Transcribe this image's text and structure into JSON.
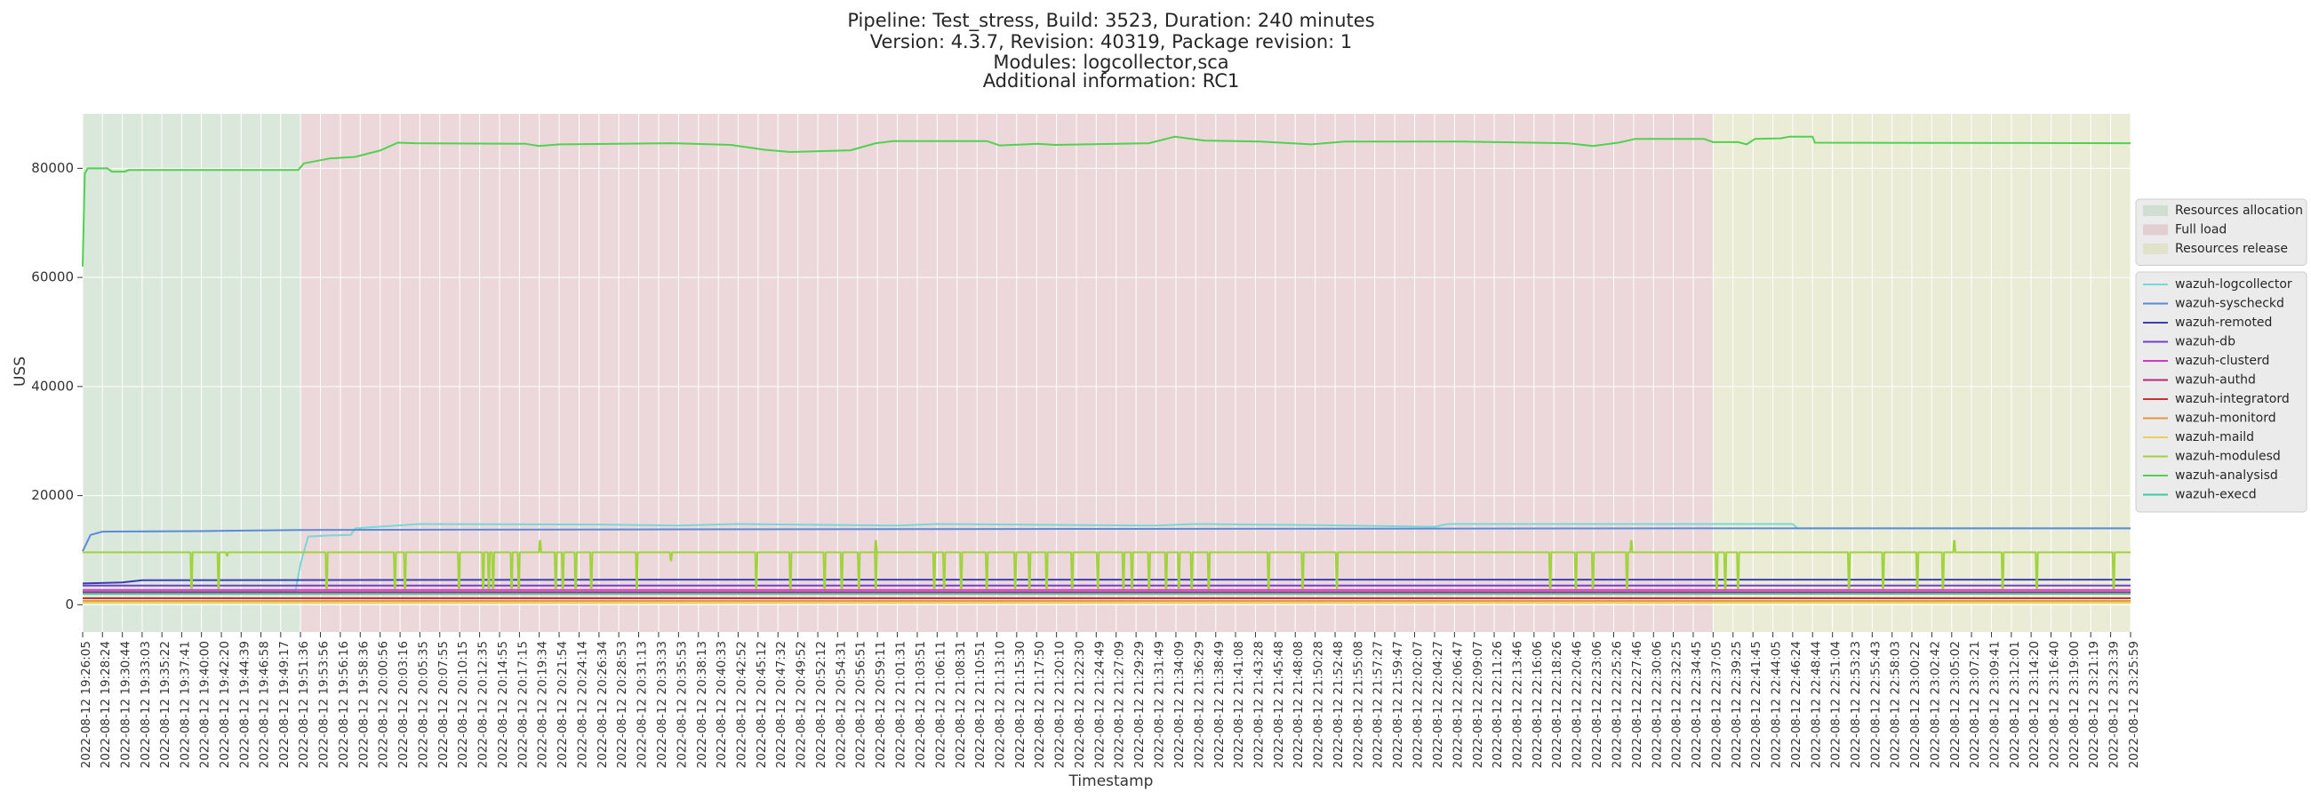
{
  "chart_data": {
    "type": "line",
    "title_lines": [
      "Pipeline: Test_stress, Build: 3523, Duration: 240 minutes",
      "Version: 4.3.7, Revision: 40319, Package revision: 1",
      "Modules: logcollector,sca",
      "Additional information: RC1"
    ],
    "xlabel": "Timestamp",
    "ylabel": "USS",
    "ylim": [
      -5000,
      90000
    ],
    "yticks": [
      0,
      20000,
      40000,
      60000,
      80000
    ],
    "grid": true,
    "legend_placement": "right",
    "x_range": [
      "2022-08-12 19:26:05",
      "2022-08-12 23:25:59"
    ],
    "x_tick_labels": [
      "2022-08-12 19:26:05",
      "2022-08-12 19:28:24",
      "2022-08-12 19:30:44",
      "2022-08-12 19:33:03",
      "2022-08-12 19:35:22",
      "2022-08-12 19:37:41",
      "2022-08-12 19:40:00",
      "2022-08-12 19:42:20",
      "2022-08-12 19:44:39",
      "2022-08-12 19:46:58",
      "2022-08-12 19:49:17",
      "2022-08-12 19:51:36",
      "2022-08-12 19:53:56",
      "2022-08-12 19:56:16",
      "2022-08-12 19:58:36",
      "2022-08-12 20:00:56",
      "2022-08-12 20:03:16",
      "2022-08-12 20:05:35",
      "2022-08-12 20:07:55",
      "2022-08-12 20:10:15",
      "2022-08-12 20:12:35",
      "2022-08-12 20:14:55",
      "2022-08-12 20:17:15",
      "2022-08-12 20:19:34",
      "2022-08-12 20:21:54",
      "2022-08-12 20:24:14",
      "2022-08-12 20:26:34",
      "2022-08-12 20:28:53",
      "2022-08-12 20:31:13",
      "2022-08-12 20:33:33",
      "2022-08-12 20:35:53",
      "2022-08-12 20:38:13",
      "2022-08-12 20:40:33",
      "2022-08-12 20:42:52",
      "2022-08-12 20:45:12",
      "2022-08-12 20:47:32",
      "2022-08-12 20:49:52",
      "2022-08-12 20:52:12",
      "2022-08-12 20:54:31",
      "2022-08-12 20:56:51",
      "2022-08-12 20:59:11",
      "2022-08-12 21:01:31",
      "2022-08-12 21:03:51",
      "2022-08-12 21:06:11",
      "2022-08-12 21:08:31",
      "2022-08-12 21:10:51",
      "2022-08-12 21:13:10",
      "2022-08-12 21:15:30",
      "2022-08-12 21:17:50",
      "2022-08-12 21:20:10",
      "2022-08-12 21:22:30",
      "2022-08-12 21:24:49",
      "2022-08-12 21:27:09",
      "2022-08-12 21:29:29",
      "2022-08-12 21:31:49",
      "2022-08-12 21:34:09",
      "2022-08-12 21:36:29",
      "2022-08-12 21:38:49",
      "2022-08-12 21:41:08",
      "2022-08-12 21:43:28",
      "2022-08-12 21:45:48",
      "2022-08-12 21:48:08",
      "2022-08-12 21:50:28",
      "2022-08-12 21:52:48",
      "2022-08-12 21:55:08",
      "2022-08-12 21:57:27",
      "2022-08-12 21:59:47",
      "2022-08-12 22:02:07",
      "2022-08-12 22:04:27",
      "2022-08-12 22:06:47",
      "2022-08-12 22:09:07",
      "2022-08-12 22:11:26",
      "2022-08-12 22:13:46",
      "2022-08-12 22:16:06",
      "2022-08-12 22:18:26",
      "2022-08-12 22:20:46",
      "2022-08-12 22:23:06",
      "2022-08-12 22:25:26",
      "2022-08-12 22:27:46",
      "2022-08-12 22:30:06",
      "2022-08-12 22:32:25",
      "2022-08-12 22:34:45",
      "2022-08-12 22:37:05",
      "2022-08-12 22:39:25",
      "2022-08-12 22:41:45",
      "2022-08-12 22:44:05",
      "2022-08-12 22:46:24",
      "2022-08-12 22:48:44",
      "2022-08-12 22:51:04",
      "2022-08-12 22:53:23",
      "2022-08-12 22:55:43",
      "2022-08-12 22:58:03",
      "2022-08-12 23:00:22",
      "2022-08-12 23:02:42",
      "2022-08-12 23:05:02",
      "2022-08-12 23:07:21",
      "2022-08-12 23:09:41",
      "2022-08-12 23:12:01",
      "2022-08-12 23:14:20",
      "2022-08-12 23:16:40",
      "2022-08-12 23:19:00",
      "2022-08-12 23:21:19",
      "2022-08-12 23:23:39",
      "2022-08-12 23:25:59"
    ],
    "phases": [
      {
        "name": "Resources allocation",
        "start": "2022-08-12 19:26:05",
        "end": "2022-08-12 19:51:36",
        "color": "#b6cfb8"
      },
      {
        "name": "Full load",
        "start": "2022-08-12 19:51:36",
        "end": "2022-08-12 22:37:05",
        "color": "#d9b1b6"
      },
      {
        "name": "Resources release",
        "start": "2022-08-12 22:37:05",
        "end": "2022-08-12 23:25:59",
        "color": "#d6d9ad"
      }
    ],
    "series": [
      {
        "name": "wazuh-logcollector",
        "color": "#78d7d7",
        "points": [
          [
            "2022-08-12 19:26:05",
            2400
          ],
          [
            "2022-08-12 19:51:00",
            2400
          ],
          [
            "2022-08-12 19:51:36",
            7500
          ],
          [
            "2022-08-12 19:52:30",
            12500
          ],
          [
            "2022-08-12 19:55:00",
            12700
          ],
          [
            "2022-08-12 19:57:30",
            12800
          ],
          [
            "2022-08-12 19:58:00",
            14000
          ],
          [
            "2022-08-12 20:05:35",
            14800
          ],
          [
            "2022-08-12 20:26:34",
            14700
          ],
          [
            "2022-08-12 20:35:53",
            14500
          ],
          [
            "2022-08-12 20:42:52",
            14800
          ],
          [
            "2022-08-12 21:01:31",
            14500
          ],
          [
            "2022-08-12 21:06:11",
            14800
          ],
          [
            "2022-08-12 21:31:49",
            14500
          ],
          [
            "2022-08-12 21:36:29",
            14800
          ],
          [
            "2022-08-12 21:50:28",
            14600
          ],
          [
            "2022-08-12 22:04:27",
            14300
          ],
          [
            "2022-08-12 22:06:00",
            14800
          ],
          [
            "2022-08-12 22:34:45",
            14800
          ],
          [
            "2022-08-12 22:46:24",
            14800
          ],
          [
            "2022-08-12 22:47:00",
            14000
          ],
          [
            "2022-08-12 23:25:59",
            14000
          ]
        ]
      },
      {
        "name": "wazuh-syscheckd",
        "color": "#5b8bd8",
        "points": [
          [
            "2022-08-12 19:26:05",
            9800
          ],
          [
            "2022-08-12 19:27:00",
            12800
          ],
          [
            "2022-08-12 19:28:24",
            13400
          ],
          [
            "2022-08-12 19:40:00",
            13500
          ],
          [
            "2022-08-12 19:51:36",
            13700
          ],
          [
            "2022-08-12 20:31:13",
            13800
          ],
          [
            "2022-08-12 21:22:30",
            13900
          ],
          [
            "2022-08-12 22:37:05",
            14000
          ],
          [
            "2022-08-12 23:25:59",
            14000
          ]
        ]
      },
      {
        "name": "wazuh-remoted",
        "color": "#3c3cb4",
        "points": [
          [
            "2022-08-12 19:26:05",
            3900
          ],
          [
            "2022-08-12 19:30:44",
            4100
          ],
          [
            "2022-08-12 19:33:03",
            4500
          ],
          [
            "2022-08-12 20:31:13",
            4600
          ],
          [
            "2022-08-12 23:25:59",
            4600
          ]
        ]
      },
      {
        "name": "wazuh-db",
        "color": "#7340c8",
        "points": [
          [
            "2022-08-12 19:26:05",
            3500
          ],
          [
            "2022-08-12 23:25:59",
            3500
          ]
        ]
      },
      {
        "name": "wazuh-clusterd",
        "color": "#c83cc8",
        "points": [
          [
            "2022-08-12 19:26:05",
            2700
          ],
          [
            "2022-08-12 23:25:59",
            2700
          ]
        ]
      },
      {
        "name": "wazuh-authd",
        "color": "#b42878",
        "points": [
          [
            "2022-08-12 19:26:05",
            2300
          ],
          [
            "2022-08-12 23:25:59",
            2300
          ]
        ]
      },
      {
        "name": "wazuh-integratord",
        "color": "#c83232",
        "points": [
          [
            "2022-08-12 19:26:05",
            1200
          ],
          [
            "2022-08-12 23:25:59",
            1200
          ]
        ]
      },
      {
        "name": "wazuh-monitord",
        "color": "#e6963c",
        "points": [
          [
            "2022-08-12 19:26:05",
            700
          ],
          [
            "2022-08-12 23:25:59",
            700
          ]
        ]
      },
      {
        "name": "wazuh-maild",
        "color": "#e6d25a",
        "points": [
          [
            "2022-08-12 19:26:05",
            400
          ],
          [
            "2022-08-12 23:25:59",
            400
          ]
        ]
      },
      {
        "name": "wazuh-modulesd",
        "color": "#a0d23c",
        "baseline": 9600,
        "dip_value": 3000,
        "dips": [
          "2022-08-12 19:38:50",
          "2022-08-12 19:42:00",
          "2022-08-12 19:54:40",
          "2022-08-12 20:02:40",
          "2022-08-12 20:03:50",
          "2022-08-12 20:10:10",
          "2022-08-12 20:13:00",
          "2022-08-12 20:13:40",
          "2022-08-12 20:14:10",
          "2022-08-12 20:16:20",
          "2022-08-12 20:17:10",
          "2022-08-12 20:21:30",
          "2022-08-12 20:22:20",
          "2022-08-12 20:23:50",
          "2022-08-12 20:25:40",
          "2022-08-12 20:31:00",
          "2022-08-12 20:45:00",
          "2022-08-12 20:49:00",
          "2022-08-12 20:53:00",
          "2022-08-12 20:55:00",
          "2022-08-12 20:57:00",
          "2022-08-12 20:59:00",
          "2022-08-12 21:05:50",
          "2022-08-12 21:07:00",
          "2022-08-12 21:09:00",
          "2022-08-12 21:12:00",
          "2022-08-12 21:15:20",
          "2022-08-12 21:17:00",
          "2022-08-12 21:19:00",
          "2022-08-12 21:22:00",
          "2022-08-12 21:25:00",
          "2022-08-12 21:28:00",
          "2022-08-12 21:29:00",
          "2022-08-12 21:31:00",
          "2022-08-12 21:33:00",
          "2022-08-12 21:34:30",
          "2022-08-12 21:36:00",
          "2022-08-12 21:38:00",
          "2022-08-12 21:45:00",
          "2022-08-12 21:49:00",
          "2022-08-12 21:53:00",
          "2022-08-12 22:18:00",
          "2022-08-12 22:21:00",
          "2022-08-12 22:23:00",
          "2022-08-12 22:27:00",
          "2022-08-12 22:37:30",
          "2022-08-12 22:38:30",
          "2022-08-12 22:40:00",
          "2022-08-12 22:53:00",
          "2022-08-12 22:57:00",
          "2022-08-12 23:01:00",
          "2022-08-12 23:04:00",
          "2022-08-12 23:11:00",
          "2022-08-12 23:15:00",
          "2022-08-12 23:24:00"
        ],
        "spikes": [
          [
            "2022-08-12 19:43:00",
            9000
          ],
          [
            "2022-08-12 20:19:40",
            11700
          ],
          [
            "2022-08-12 20:35:00",
            8100
          ],
          [
            "2022-08-12 20:59:00",
            11700
          ],
          [
            "2022-08-12 22:27:30",
            11700
          ],
          [
            "2022-08-12 23:05:20",
            11700
          ]
        ]
      },
      {
        "name": "wazuh-analysisd",
        "color": "#50d250",
        "points": [
          [
            "2022-08-12 19:26:05",
            62000
          ],
          [
            "2022-08-12 19:26:20",
            79000
          ],
          [
            "2022-08-12 19:26:40",
            80000
          ],
          [
            "2022-08-12 19:29:00",
            80000
          ],
          [
            "2022-08-12 19:29:30",
            79400
          ],
          [
            "2022-08-12 19:31:00",
            79400
          ],
          [
            "2022-08-12 19:31:30",
            79700
          ],
          [
            "2022-08-12 19:51:20",
            79700
          ],
          [
            "2022-08-12 19:52:00",
            80900
          ],
          [
            "2022-08-12 19:55:00",
            81800
          ],
          [
            "2022-08-12 19:58:00",
            82100
          ],
          [
            "2022-08-12 20:01:00",
            83300
          ],
          [
            "2022-08-12 20:03:00",
            84700
          ],
          [
            "2022-08-12 20:05:00",
            84600
          ],
          [
            "2022-08-12 20:18:00",
            84500
          ],
          [
            "2022-08-12 20:19:30",
            84100
          ],
          [
            "2022-08-12 20:22:00",
            84400
          ],
          [
            "2022-08-12 20:35:00",
            84600
          ],
          [
            "2022-08-12 20:42:00",
            84300
          ],
          [
            "2022-08-12 20:46:00",
            83400
          ],
          [
            "2022-08-12 20:49:00",
            83000
          ],
          [
            "2022-08-12 20:56:00",
            83300
          ],
          [
            "2022-08-12 20:59:00",
            84600
          ],
          [
            "2022-08-12 21:01:00",
            85000
          ],
          [
            "2022-08-12 21:12:00",
            85000
          ],
          [
            "2022-08-12 21:13:30",
            84200
          ],
          [
            "2022-08-12 21:18:00",
            84500
          ],
          [
            "2022-08-12 21:20:00",
            84300
          ],
          [
            "2022-08-12 21:31:00",
            84600
          ],
          [
            "2022-08-12 21:34:00",
            85800
          ],
          [
            "2022-08-12 21:37:30",
            85100
          ],
          [
            "2022-08-12 21:44:00",
            84900
          ],
          [
            "2022-08-12 21:50:00",
            84400
          ],
          [
            "2022-08-12 21:54:00",
            84900
          ],
          [
            "2022-08-12 22:08:00",
            84900
          ],
          [
            "2022-08-12 22:20:00",
            84600
          ],
          [
            "2022-08-12 22:23:00",
            84100
          ],
          [
            "2022-08-12 22:26:00",
            84700
          ],
          [
            "2022-08-12 22:28:00",
            85400
          ],
          [
            "2022-08-12 22:36:00",
            85400
          ],
          [
            "2022-08-12 22:37:05",
            84800
          ],
          [
            "2022-08-12 22:40:00",
            84800
          ],
          [
            "2022-08-12 22:41:00",
            84400
          ],
          [
            "2022-08-12 22:42:00",
            85400
          ],
          [
            "2022-08-12 22:45:00",
            85500
          ],
          [
            "2022-08-12 22:46:00",
            85800
          ],
          [
            "2022-08-12 22:48:44",
            85800
          ],
          [
            "2022-08-12 22:49:00",
            84700
          ],
          [
            "2022-08-12 23:25:59",
            84600
          ]
        ]
      },
      {
        "name": "wazuh-execd",
        "color": "#3cc8a0",
        "points": [
          [
            "2022-08-12 19:26:05",
            2000
          ],
          [
            "2022-08-12 23:25:59",
            2000
          ]
        ]
      }
    ]
  }
}
